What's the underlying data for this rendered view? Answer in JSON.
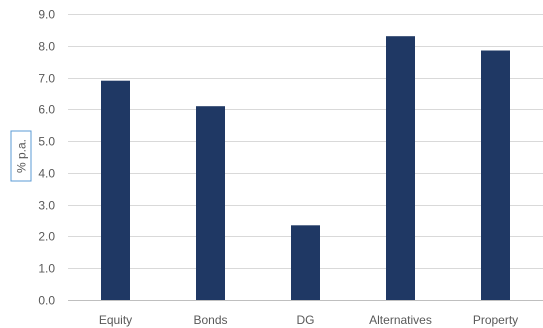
{
  "chart_data": {
    "type": "bar",
    "title": "",
    "xlabel": "",
    "ylabel": "% p.a.",
    "categories": [
      "Equity",
      "Bonds",
      "DG",
      "Alternatives",
      "Property"
    ],
    "values": [
      6.9,
      6.1,
      2.35,
      8.3,
      7.85
    ],
    "ylim": [
      0,
      9
    ],
    "yticks": [
      "0.0",
      "1.0",
      "2.0",
      "3.0",
      "4.0",
      "5.0",
      "6.0",
      "7.0",
      "8.0",
      "9.0"
    ],
    "grid": true,
    "legend": "none",
    "colors": {
      "bar": "#1F3864",
      "grid": "#D9D9D9",
      "axis": "#BFBFBF",
      "text": "#595959",
      "ylabel_box": "#5B9BD5"
    }
  }
}
